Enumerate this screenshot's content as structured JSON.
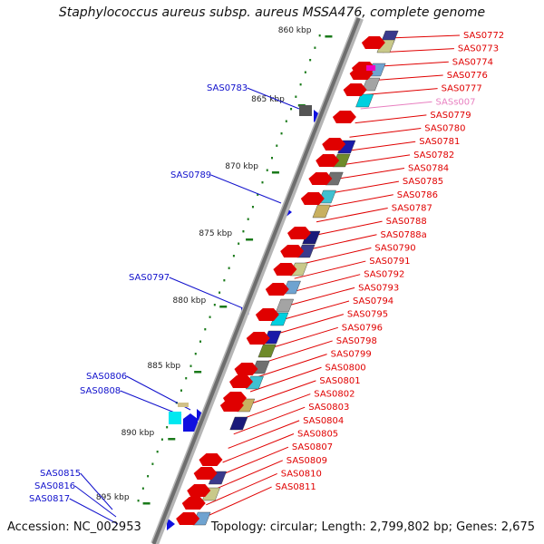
{
  "title": "Staphylococcus aureus subsp. aureus MSSA476, complete genome",
  "footer": {
    "accession": "Accession: NC_002953",
    "topology": "Topology: circular; Length: 2,799,802 bp; Genes: 2,675"
  },
  "colors": {
    "right_label": "#e00000",
    "left_label": "#1010cc",
    "pale_label": "#e87fc0",
    "backbone": "#6e6e6e",
    "tick": "#1a7a1a"
  },
  "kbp_ticks": [
    "860 kbp",
    "865 kbp",
    "870 kbp",
    "875 kbp",
    "880 kbp",
    "885 kbp",
    "890 kbp",
    "895 kbp"
  ],
  "left_labels": [
    "SAS0783",
    "SAS0789",
    "SAS0797",
    "SAS0806",
    "SAS0808",
    "SAS0815",
    "SAS0816",
    "SAS0817"
  ],
  "right_labels": [
    "SAS0772",
    "SAS0773",
    "SAS0774",
    "SAS0776",
    "SAS0777",
    "SASs007",
    "SAS0779",
    "SAS0780",
    "SAS0781",
    "SAS0782",
    "SAS0784",
    "SAS0785",
    "SAS0786",
    "SAS0787",
    "SAS0788",
    "SAS0788a",
    "SAS0790",
    "SAS0791",
    "SAS0792",
    "SAS0793",
    "SAS0794",
    "SAS0795",
    "SAS0796",
    "SAS0798",
    "SAS0799",
    "SAS0800",
    "SAS0801",
    "SAS0802",
    "SAS0803",
    "SAS0804",
    "SAS0805",
    "SAS0807",
    "SAS0809",
    "SAS0810",
    "SAS0811"
  ]
}
